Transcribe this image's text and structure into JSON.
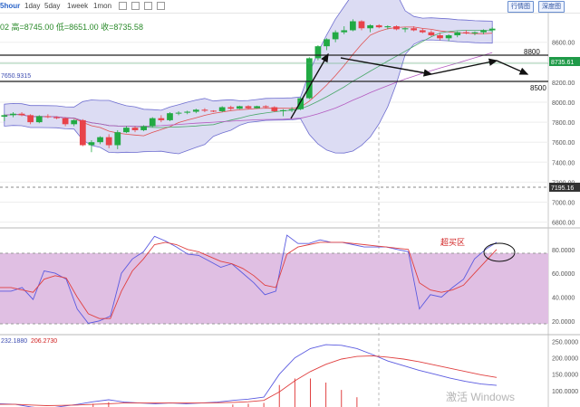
{
  "toolbar": {
    "tabs": [
      "5hour",
      "1day",
      "5day",
      "1week",
      "1mon"
    ],
    "active_tab": "5hour",
    "buttons": [
      "行情图",
      "深度图"
    ]
  },
  "ohlc_text": {
    "open": "02",
    "high": "高=8745.00",
    "low": "低=8651.00",
    "close": "收=8735.58"
  },
  "watermark": "激活 Windows",
  "colors": {
    "up": "#22aa44",
    "down": "#e8434a",
    "bollinger_fill": "#dcdcf3",
    "bollinger_line": "#6f6fd0",
    "overbought": "#e0bfe3"
  },
  "chart_data": [
    {
      "type": "candlestick",
      "y_ticks": [
        "8600.00",
        "8400.00",
        "8200.00",
        "8000.00",
        "7800.00",
        "7600.00",
        "7400.00",
        "7200.00",
        "7000.00",
        "6800.00"
      ],
      "ylim": [
        6760,
        8860
      ],
      "price_tag": "8735.61",
      "dashed_tag": "7195.16",
      "mid_band_label": "7650.9315",
      "annotations": [
        "8800",
        "8500"
      ],
      "candles": [
        [
          7855,
          7880,
          7810,
          7870
        ],
        [
          7870,
          7900,
          7850,
          7885
        ],
        [
          7885,
          7900,
          7860,
          7870
        ],
        [
          7870,
          7880,
          7780,
          7800
        ],
        [
          7800,
          7870,
          7790,
          7860
        ],
        [
          7860,
          7880,
          7840,
          7850
        ],
        [
          7850,
          7860,
          7830,
          7840
        ],
        [
          7840,
          7850,
          7760,
          7780
        ],
        [
          7780,
          7830,
          7760,
          7820
        ],
        [
          7820,
          7830,
          7560,
          7570
        ],
        [
          7570,
          7620,
          7500,
          7600
        ],
        [
          7600,
          7660,
          7580,
          7650
        ],
        [
          7650,
          7680,
          7540,
          7570
        ],
        [
          7570,
          7720,
          7530,
          7700
        ],
        [
          7700,
          7760,
          7690,
          7745
        ],
        [
          7745,
          7760,
          7700,
          7720
        ],
        [
          7720,
          7770,
          7710,
          7760
        ],
        [
          7760,
          7850,
          7750,
          7840
        ],
        [
          7840,
          7870,
          7800,
          7820
        ],
        [
          7820,
          7900,
          7810,
          7890
        ],
        [
          7890,
          7910,
          7870,
          7895
        ],
        [
          7895,
          7915,
          7880,
          7905
        ],
        [
          7905,
          7935,
          7890,
          7925
        ],
        [
          7925,
          7940,
          7900,
          7915
        ],
        [
          7915,
          7920,
          7900,
          7910
        ],
        [
          7910,
          7960,
          7900,
          7950
        ],
        [
          7950,
          7965,
          7920,
          7935
        ],
        [
          7935,
          7965,
          7930,
          7960
        ],
        [
          7960,
          7970,
          7930,
          7940
        ],
        [
          7940,
          7965,
          7935,
          7960
        ],
        [
          7960,
          7970,
          7940,
          7950
        ],
        [
          7950,
          7960,
          7900,
          7910
        ],
        [
          7910,
          7930,
          7860,
          7920
        ],
        [
          7920,
          7950,
          7900,
          7930
        ],
        [
          7930,
          8050,
          7920,
          8040
        ],
        [
          8040,
          8450,
          8030,
          8440
        ],
        [
          8440,
          8570,
          8420,
          8560
        ],
        [
          8560,
          8640,
          8520,
          8630
        ],
        [
          8630,
          8720,
          8600,
          8700
        ],
        [
          8700,
          8760,
          8680,
          8720
        ],
        [
          8720,
          8830,
          8710,
          8810
        ],
        [
          8810,
          8820,
          8720,
          8740
        ],
        [
          8740,
          8780,
          8700,
          8770
        ],
        [
          8770,
          8780,
          8740,
          8750
        ],
        [
          8750,
          8770,
          8730,
          8760
        ],
        [
          8760,
          8770,
          8720,
          8730
        ],
        [
          8730,
          8750,
          8700,
          8740
        ],
        [
          8740,
          8760,
          8710,
          8720
        ],
        [
          8720,
          8740,
          8690,
          8700
        ],
        [
          8700,
          8720,
          8660,
          8670
        ],
        [
          8670,
          8690,
          8620,
          8640
        ],
        [
          8640,
          8680,
          8610,
          8670
        ],
        [
          8670,
          8710,
          8650,
          8700
        ],
        [
          8700,
          8720,
          8680,
          8690
        ],
        [
          8690,
          8710,
          8670,
          8700
        ],
        [
          8700,
          8730,
          8680,
          8720
        ],
        [
          8720,
          8750,
          8700,
          8736
        ]
      ]
    },
    {
      "type": "line",
      "y_ticks": [
        "80.0000",
        "60.0000",
        "40.0000",
        "20.0000"
      ],
      "ylim": [
        10,
        95
      ],
      "annotation": "超买区",
      "series": [
        {
          "values": [
            45,
            45,
            48,
            38,
            62,
            60,
            55,
            30,
            18,
            20,
            24,
            60,
            72,
            78,
            91,
            87,
            82,
            76,
            75,
            70,
            65,
            68,
            60,
            52,
            42,
            45,
            92,
            85,
            85,
            88,
            86,
            86,
            84,
            82,
            82,
            82,
            80,
            78,
            30,
            42,
            40,
            48,
            55,
            72,
            80,
            86
          ]
        },
        {
          "values": [
            48,
            48,
            46,
            44,
            55,
            58,
            56,
            40,
            26,
            22,
            22,
            45,
            62,
            72,
            84,
            86,
            84,
            80,
            78,
            74,
            70,
            68,
            64,
            58,
            50,
            48,
            76,
            82,
            84,
            86,
            86,
            86,
            85,
            84,
            83,
            82,
            81,
            80,
            52,
            46,
            44,
            46,
            50,
            60,
            70,
            80
          ]
        }
      ]
    },
    {
      "type": "line",
      "y_ticks": [
        "250.0000",
        "200.0000",
        "150.0000",
        "100.0000"
      ],
      "ylim": [
        50,
        265
      ],
      "legend_values": [
        "232.1880",
        "206.2730"
      ],
      "series": [
        {
          "values": [
            60,
            58,
            50,
            45,
            52,
            58,
            66,
            72,
            65,
            62,
            60,
            62,
            60,
            62,
            65,
            70,
            74,
            80,
            150,
            200,
            228,
            240,
            238,
            228,
            210,
            190,
            176,
            162,
            150,
            138,
            128,
            120,
            116
          ]
        },
        {
          "values": [
            58,
            58,
            56,
            54,
            55,
            56,
            58,
            60,
            62,
            62,
            62,
            62,
            62,
            62,
            63,
            64,
            66,
            70,
            96,
            130,
            158,
            180,
            196,
            204,
            206,
            202,
            196,
            188,
            178,
            168,
            158,
            148,
            140
          ]
        }
      ]
    }
  ]
}
